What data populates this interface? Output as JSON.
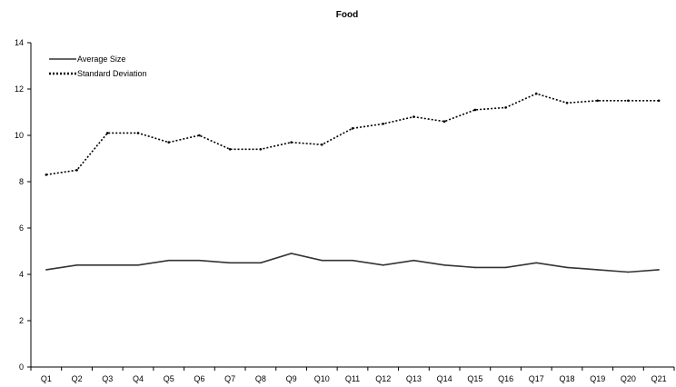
{
  "chart_data": {
    "type": "line",
    "title": "Food",
    "xlabel": "",
    "ylabel": "",
    "categories": [
      "Q1",
      "Q2",
      "Q3",
      "Q4",
      "Q5",
      "Q6",
      "Q7",
      "Q8",
      "Q9",
      "Q10",
      "Q11",
      "Q12",
      "Q13",
      "Q14",
      "Q15",
      "Q16",
      "Q17",
      "Q18",
      "Q19",
      "Q20",
      "Q21"
    ],
    "ylim": [
      0,
      14
    ],
    "yticks": [
      "0",
      "2",
      "4",
      "6",
      "8",
      "10",
      "12",
      "14"
    ],
    "grid": false,
    "legend": "top-left",
    "series": [
      {
        "name": "Average Size",
        "style": "solid",
        "color": "#333333",
        "values": [
          4.2,
          4.4,
          4.4,
          4.4,
          4.6,
          4.6,
          4.5,
          4.5,
          4.9,
          4.6,
          4.6,
          4.4,
          4.6,
          4.4,
          4.3,
          4.3,
          4.5,
          4.3,
          4.2,
          4.1,
          4.2
        ]
      },
      {
        "name": "Standard Deviation",
        "style": "dotted",
        "color": "#000000",
        "values": [
          8.3,
          8.5,
          10.1,
          10.1,
          9.7,
          10.0,
          9.4,
          9.4,
          9.7,
          9.6,
          10.3,
          10.5,
          10.8,
          10.6,
          11.1,
          11.2,
          11.8,
          11.4,
          11.5,
          11.5,
          11.5
        ]
      }
    ]
  }
}
